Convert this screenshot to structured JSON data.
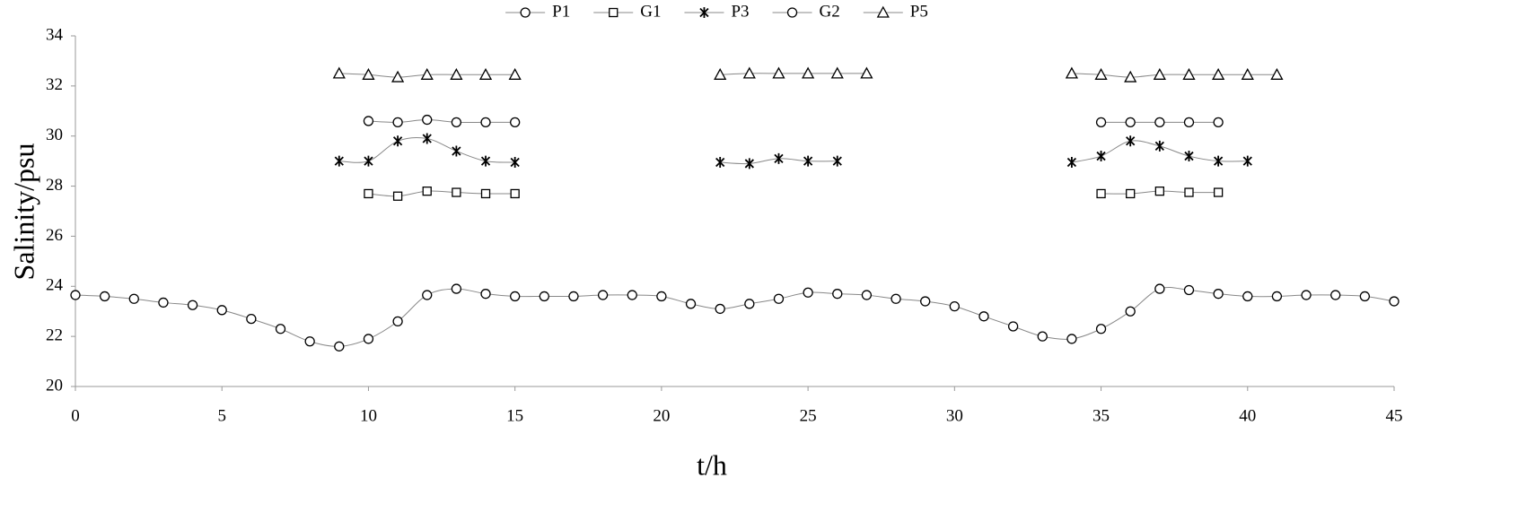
{
  "chart_data": {
    "type": "line",
    "xlabel": "t/h",
    "ylabel": "Salinity/psu",
    "x": [
      0,
      1,
      2,
      3,
      4,
      5,
      6,
      7,
      8,
      9,
      10,
      11,
      12,
      13,
      14,
      15,
      16,
      17,
      18,
      19,
      20,
      21,
      22,
      23,
      24,
      25,
      26,
      27,
      28,
      29,
      30,
      31,
      32,
      33,
      34,
      35,
      36,
      37,
      38,
      39,
      40,
      41,
      42,
      43,
      44,
      45
    ],
    "series": [
      {
        "name": "P1",
        "color": "#000000",
        "marker": "circle",
        "values": [
          23.65,
          23.6,
          23.5,
          23.35,
          23.25,
          23.05,
          22.7,
          22.3,
          21.8,
          21.6,
          21.9,
          22.6,
          23.65,
          23.9,
          23.7,
          23.6,
          23.6,
          23.6,
          23.65,
          23.65,
          23.6,
          23.3,
          23.1,
          23.3,
          23.5,
          23.75,
          23.7,
          23.65,
          23.5,
          23.4,
          23.2,
          22.8,
          22.4,
          22.0,
          21.9,
          22.3,
          23.0,
          23.9,
          23.85,
          23.7,
          23.6,
          23.6,
          23.65,
          23.65,
          23.6,
          23.4
        ]
      },
      {
        "name": "G1",
        "color": "#000000",
        "marker": "square",
        "values": [
          null,
          null,
          null,
          null,
          null,
          null,
          null,
          null,
          null,
          null,
          27.7,
          27.6,
          27.8,
          27.75,
          27.7,
          27.7,
          null,
          null,
          null,
          null,
          null,
          null,
          null,
          null,
          null,
          null,
          null,
          null,
          null,
          null,
          null,
          null,
          null,
          null,
          null,
          27.7,
          27.7,
          27.8,
          27.75,
          27.75,
          null,
          null,
          null,
          null,
          null,
          null
        ]
      },
      {
        "name": "P3",
        "color": "#000000",
        "marker": "star",
        "values": [
          null,
          null,
          null,
          null,
          null,
          null,
          null,
          null,
          null,
          29,
          29,
          29.8,
          29.9,
          29.4,
          29,
          28.95,
          null,
          null,
          null,
          null,
          null,
          null,
          28.95,
          28.9,
          29.1,
          29,
          29,
          null,
          null,
          null,
          null,
          null,
          null,
          null,
          28.95,
          29.2,
          29.8,
          29.6,
          29.2,
          29,
          29,
          null,
          null,
          null,
          null,
          null
        ]
      },
      {
        "name": "G2",
        "color": "#000000",
        "marker": "circle",
        "values": [
          null,
          null,
          null,
          null,
          null,
          null,
          null,
          null,
          null,
          null,
          30.6,
          30.55,
          30.65,
          30.55,
          30.55,
          30.55,
          null,
          null,
          null,
          null,
          null,
          null,
          null,
          null,
          null,
          null,
          null,
          null,
          null,
          null,
          null,
          null,
          null,
          null,
          null,
          30.55,
          30.55,
          30.55,
          30.55,
          30.55,
          null,
          null,
          null,
          null,
          null,
          null
        ]
      },
      {
        "name": "P5",
        "color": "#000000",
        "marker": "triangle",
        "values": [
          null,
          null,
          null,
          null,
          null,
          null,
          null,
          null,
          null,
          32.5,
          32.45,
          32.35,
          32.45,
          32.45,
          32.45,
          32.45,
          null,
          null,
          null,
          null,
          null,
          null,
          32.45,
          32.5,
          32.5,
          32.5,
          32.5,
          32.5,
          null,
          null,
          null,
          null,
          null,
          null,
          32.5,
          32.45,
          32.35,
          32.45,
          32.45,
          32.45,
          32.45,
          32.45,
          null,
          null,
          null,
          null
        ]
      }
    ],
    "xlim": [
      0,
      45
    ],
    "xticks": [
      0,
      5,
      10,
      15,
      20,
      25,
      30,
      35,
      40,
      45
    ],
    "ylim": [
      20,
      34
    ],
    "yticks": [
      20,
      22,
      24,
      26,
      28,
      30,
      32,
      34
    ],
    "grid": false,
    "legend": "top"
  }
}
